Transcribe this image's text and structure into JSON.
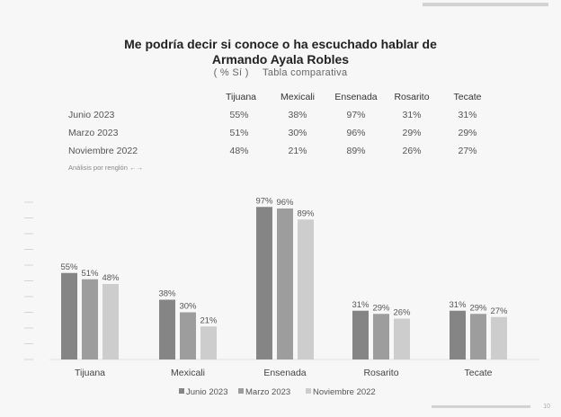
{
  "title_line1": "Me podría decir si conoce o ha escuchado hablar de",
  "title_line2": "Armando Ayala Robles",
  "subtitle_left": "( % Sí )",
  "subtitle_right": "Tabla comparativa",
  "table": {
    "columns": [
      "Tijuana",
      "Mexicali",
      "Ensenada",
      "Rosarito",
      "Tecate"
    ],
    "rows": [
      {
        "label": "Junio 2023",
        "cells": [
          "55%",
          "38%",
          "97%",
          "31%",
          "31%"
        ]
      },
      {
        "label": "Marzo 2023",
        "cells": [
          "51%",
          "30%",
          "96%",
          "29%",
          "29%"
        ]
      },
      {
        "label": "Noviembre 2022",
        "cells": [
          "48%",
          "21%",
          "89%",
          "26%",
          "27%"
        ]
      }
    ],
    "note": "Análisis por renglón ←→"
  },
  "page_number": "10",
  "colors": {
    "Junio 2023": "#858585",
    "Marzo 2023": "#9d9d9d",
    "Noviembre 2022": "#cdcdcd"
  },
  "chart_data": {
    "type": "bar",
    "categories": [
      "Tijuana",
      "Mexicali",
      "Ensenada",
      "Rosarito",
      "Tecate"
    ],
    "series": [
      {
        "name": "Junio 2023",
        "values": [
          55,
          38,
          97,
          31,
          31
        ]
      },
      {
        "name": "Marzo 2023",
        "values": [
          51,
          30,
          96,
          29,
          29
        ]
      },
      {
        "name": "Noviembre 2022",
        "values": [
          48,
          21,
          89,
          26,
          27
        ]
      }
    ],
    "value_suffix": "%",
    "ylim": [
      0,
      100
    ],
    "legend": "bottom-center",
    "grid": false
  }
}
